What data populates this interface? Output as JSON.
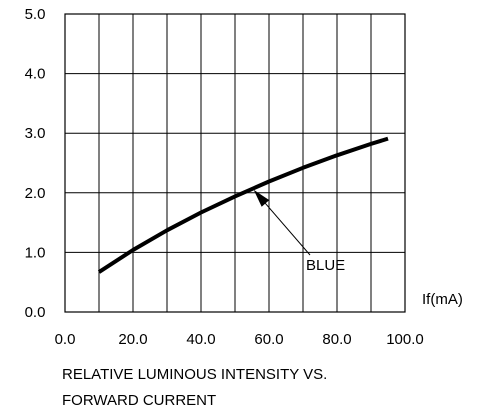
{
  "chart_data": {
    "type": "line",
    "title": "",
    "caption": [
      "RELATIVE LUMINOUS INTENSITY VS.",
      "FORWARD CURRENT"
    ],
    "xlabel": "If(mA)",
    "ylabel": "",
    "xlim": [
      0,
      100
    ],
    "ylim": [
      0,
      5
    ],
    "grid": true,
    "x_ticks": [
      {
        "value": 0,
        "label": "0.0"
      },
      {
        "value": 20,
        "label": "20.0"
      },
      {
        "value": 40,
        "label": "40.0"
      },
      {
        "value": 60,
        "label": "60.0"
      },
      {
        "value": 80,
        "label": "80.0"
      },
      {
        "value": 100,
        "label": "100.0"
      }
    ],
    "y_ticks": [
      {
        "value": 0,
        "label": "0.0"
      },
      {
        "value": 1,
        "label": "1.0"
      },
      {
        "value": 2,
        "label": "2.0"
      },
      {
        "value": 3,
        "label": "3.0"
      },
      {
        "value": 4,
        "label": "4.0"
      },
      {
        "value": 5,
        "label": "5.0"
      }
    ],
    "x_grid_values": [
      0,
      10,
      20,
      30,
      40,
      50,
      60,
      70,
      80,
      90,
      100
    ],
    "y_grid_values": [
      0,
      1,
      2,
      3,
      4,
      5
    ],
    "series": [
      {
        "name": "BLUE",
        "color": "#000000",
        "x": [
          10,
          20,
          30,
          40,
          50,
          60,
          70,
          80,
          90,
          95
        ],
        "y": [
          0.67,
          1.04,
          1.37,
          1.67,
          1.94,
          2.19,
          2.42,
          2.63,
          2.82,
          2.91
        ]
      }
    ],
    "annotations": [
      {
        "text": "BLUE",
        "points_to": {
          "x": 55.5,
          "y": 2.05
        }
      }
    ]
  }
}
